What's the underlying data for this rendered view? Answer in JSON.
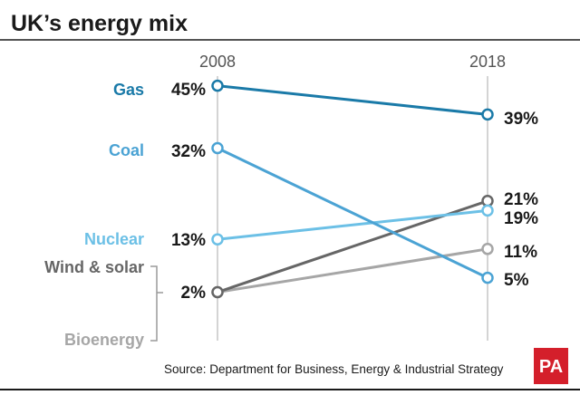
{
  "chart_data": {
    "type": "line",
    "title": "UK’s energy mix",
    "x": [
      "2008",
      "2018"
    ],
    "value_suffix": "%",
    "series": [
      {
        "name": "Gas",
        "values": [
          45,
          39
        ],
        "color": "#1a7aa8"
      },
      {
        "name": "Coal",
        "values": [
          32,
          5
        ],
        "color": "#4ba3d4"
      },
      {
        "name": "Nuclear",
        "values": [
          13,
          19
        ],
        "color": "#6cc0e6"
      },
      {
        "name": "Wind & solar",
        "values": [
          2,
          21
        ],
        "color": "#666666"
      },
      {
        "name": "Bioenergy",
        "values": [
          2,
          11
        ],
        "color": "#a6a6a6"
      }
    ],
    "shared_start_label": "2%",
    "source": "Source: Department for Business, Energy & Industrial Strategy"
  },
  "logo": {
    "text": "PA",
    "color": "#d41f2b"
  }
}
